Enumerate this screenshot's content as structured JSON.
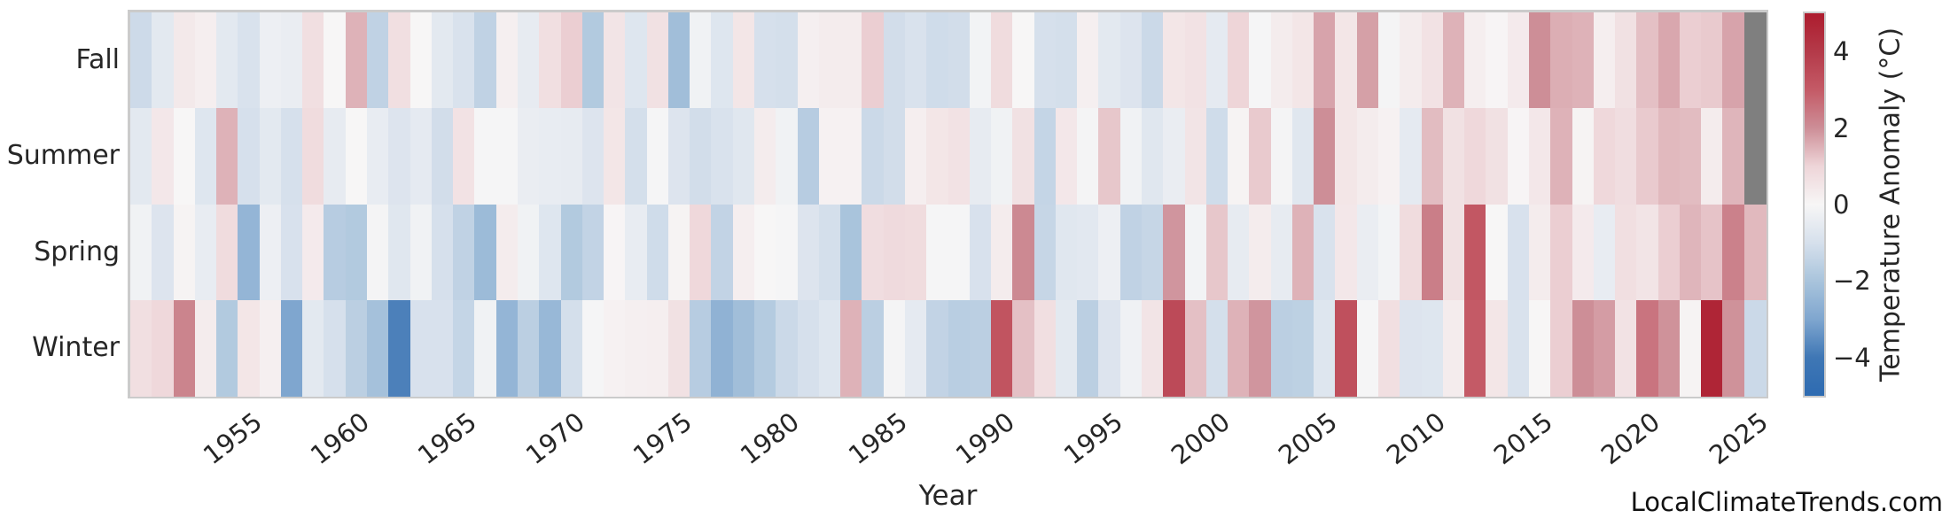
{
  "watermark": "LocalClimateTrends.com",
  "axes": {
    "x_label": "Year",
    "x_tick_labels": [
      "1955",
      "1960",
      "1965",
      "1970",
      "1975",
      "1980",
      "1985",
      "1990",
      "1995",
      "2000",
      "2005",
      "2010",
      "2015",
      "2020",
      "2025"
    ],
    "row_labels": [
      "Fall",
      "Summer",
      "Spring",
      "Winter"
    ]
  },
  "colorbar": {
    "label": "Temperature Anomaly (°C)",
    "tick_labels": [
      "4",
      "2",
      "0",
      "−2",
      "−4"
    ],
    "tick_values": [
      4,
      2,
      0,
      -2,
      -4
    ],
    "vmin": -5,
    "vmax": 5
  },
  "colors": {
    "background": "#ffffff",
    "text": "#262626",
    "frame": "#cbcbcb",
    "missing_cell": "#7f7f7f",
    "colormap_stops": [
      {
        "value": -5,
        "color": "#2e6bb1"
      },
      {
        "value": -4,
        "color": "#3f77b5"
      },
      {
        "value": -3,
        "color": "#7fa6cf"
      },
      {
        "value": -2,
        "color": "#a9c4dc"
      },
      {
        "value": -1,
        "color": "#d6e0ec"
      },
      {
        "value": 0,
        "color": "#f7f6f6"
      },
      {
        "value": 1,
        "color": "#eed5d8"
      },
      {
        "value": 2,
        "color": "#cd8e97"
      },
      {
        "value": 3,
        "color": "#c45a66"
      },
      {
        "value": 4,
        "color": "#b43a49"
      },
      {
        "value": 5,
        "color": "#ad1c2e"
      }
    ]
  },
  "chart_data": {
    "type": "heatmap",
    "title": "",
    "xlabel": "Year",
    "unit": "°C",
    "vmin": -5,
    "vmax": 5,
    "x": [
      1950,
      1951,
      1952,
      1953,
      1954,
      1955,
      1956,
      1957,
      1958,
      1959,
      1960,
      1961,
      1962,
      1963,
      1964,
      1965,
      1966,
      1967,
      1968,
      1969,
      1970,
      1971,
      1972,
      1973,
      1974,
      1975,
      1976,
      1977,
      1978,
      1979,
      1980,
      1981,
      1982,
      1983,
      1984,
      1985,
      1986,
      1987,
      1988,
      1989,
      1990,
      1991,
      1992,
      1993,
      1994,
      1995,
      1996,
      1997,
      1998,
      1999,
      2000,
      2001,
      2002,
      2003,
      2004,
      2005,
      2006,
      2007,
      2008,
      2009,
      2010,
      2011,
      2012,
      2013,
      2014,
      2015,
      2016,
      2017,
      2018,
      2019,
      2020,
      2021,
      2022,
      2023,
      2024,
      2025
    ],
    "rows": [
      "Fall",
      "Summer",
      "Spring",
      "Winter"
    ],
    "series": [
      {
        "name": "Fall",
        "values": [
          -1.2,
          -0.6,
          0.4,
          0.25,
          -0.6,
          -0.9,
          -0.3,
          -0.4,
          0.7,
          0,
          1.5,
          -1.5,
          0.7,
          0,
          -0.6,
          -0.9,
          -1.5,
          0.2,
          -0.5,
          0.7,
          1.1,
          -1.8,
          0.55,
          -0.75,
          0.65,
          -2.2,
          -0.2,
          -0.75,
          0.5,
          -1,
          -1.05,
          0.2,
          0.3,
          0.3,
          1.1,
          -1.1,
          -0.9,
          -1.15,
          -1.1,
          -0.15,
          0.8,
          0,
          -1,
          -1.05,
          0.2,
          -0.6,
          -0.8,
          -1.25,
          0.5,
          0.6,
          -0.55,
          1,
          -0.05,
          0.3,
          0.5,
          1.7,
          0.5,
          1.75,
          -0.1,
          0.3,
          0.6,
          1.5,
          0.25,
          0.05,
          0.35,
          2,
          1.55,
          1.5,
          0.25,
          0.65,
          1.3,
          1.65,
          1.1,
          1.15,
          1.7,
          null
        ]
      },
      {
        "name": "Summer",
        "values": [
          -0.6,
          0.45,
          0,
          -0.75,
          1.5,
          -1,
          -0.6,
          -1,
          0.8,
          -0.5,
          0,
          -0.45,
          -0.8,
          -0.55,
          -1.1,
          0.6,
          -0.05,
          -0.05,
          -0.4,
          -0.45,
          -0.5,
          -0.8,
          0.5,
          -1.05,
          -0.05,
          -0.8,
          -1.1,
          -0.9,
          -0.7,
          0.3,
          -0.2,
          -1.7,
          0.15,
          0.15,
          -1.25,
          -1.1,
          0.25,
          0.5,
          0.6,
          -0.5,
          -0.2,
          0.65,
          -1.4,
          0.45,
          -0.1,
          1.2,
          -0.2,
          -0.7,
          -0.4,
          0.55,
          -1.15,
          0.1,
          1.15,
          -0.1,
          -0.7,
          2,
          0.5,
          0.3,
          0.15,
          -0.55,
          1.35,
          0.65,
          0.9,
          0.65,
          0.05,
          0.45,
          1.5,
          0.1,
          0.9,
          0.75,
          1.15,
          1.4,
          1.35,
          0.3,
          1.45,
          null
        ]
      },
      {
        "name": "Spring",
        "values": [
          -0.2,
          -0.8,
          0.1,
          -0.45,
          0.8,
          -2.5,
          -0.3,
          -0.95,
          0.35,
          -1.7,
          -1.8,
          -0.1,
          -0.7,
          -0.2,
          -1,
          -1.5,
          -2.3,
          0.3,
          -0.2,
          -0.75,
          -1.8,
          -1.45,
          0.05,
          -0.45,
          -1.15,
          0.1,
          0.9,
          -1.45,
          0.25,
          0,
          -0.05,
          -0.8,
          -1.05,
          -2,
          0.75,
          0.85,
          0.8,
          -0.05,
          -0.05,
          -0.95,
          0.3,
          2.1,
          -1.35,
          -0.7,
          -0.65,
          -0.3,
          -1.5,
          -1.35,
          1.9,
          -0.15,
          1.2,
          -0.5,
          0.3,
          -0.5,
          1.5,
          -0.9,
          0.45,
          -0.4,
          -0.15,
          0.8,
          2.3,
          0.65,
          3.1,
          0,
          -0.95,
          0.3,
          1.1,
          0.35,
          -0.45,
          0.7,
          0.55,
          1.1,
          1.45,
          1.25,
          2.25,
          1.4
        ]
      },
      {
        "name": "Winter",
        "values": [
          0.7,
          0.9,
          2.2,
          0.3,
          -1.8,
          0.5,
          0.2,
          -3,
          -0.6,
          -1,
          -1.6,
          -2.1,
          -3.8,
          -0.95,
          -0.95,
          -1.4,
          -0.2,
          -2.5,
          -1.6,
          -2.4,
          -1.05,
          -0.05,
          0.15,
          0.2,
          0.25,
          0.65,
          -1.7,
          -2.6,
          -2.2,
          -1.75,
          -1.25,
          -1,
          -0.75,
          1.5,
          -1.6,
          -0.1,
          -0.55,
          -1.45,
          -1.65,
          -1.6,
          3.2,
          1.3,
          0.7,
          -0.6,
          -1.6,
          -0.8,
          -0.25,
          0.55,
          3.5,
          1.3,
          -1.05,
          1.5,
          1.9,
          -1.6,
          -1.55,
          -0.75,
          3.3,
          -0.05,
          0.7,
          -0.8,
          -0.75,
          0.3,
          3,
          0.5,
          -0.9,
          0,
          1.1,
          2,
          1.8,
          0.6,
          2.5,
          1.95,
          0.1,
          4.7,
          1.95,
          -1.25
        ]
      }
    ],
    "legend_position": "right-colorbar",
    "grid": false,
    "notes": "Gray cells = missing data (Fall 2025, Summer 2025)"
  }
}
